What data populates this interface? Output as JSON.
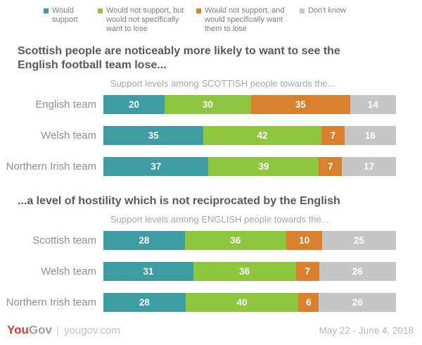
{
  "legend": {
    "items": [
      {
        "label": "Would support",
        "color": "#3E9CA3"
      },
      {
        "label": "Would not support, but would not specifically want to lose",
        "color": "#8EC63F"
      },
      {
        "label": "Would not support, and would specifically want them to lose",
        "color": "#D9802E"
      },
      {
        "label": "Don't know",
        "color": "#C6C6C6"
      }
    ]
  },
  "chart_data": [
    {
      "type": "bar",
      "stacked": true,
      "orientation": "horizontal",
      "title": "Scottish people are noticeably more likely to want to see the English football team lose...",
      "subtitle": "Support levels among SCOTTISH people towards the...",
      "categories": [
        "English team",
        "Welsh team",
        "Northern Irish team"
      ],
      "series": [
        {
          "name": "Would support",
          "values": [
            20,
            35,
            37
          ]
        },
        {
          "name": "Would not support, but would not specifically want to lose",
          "values": [
            30,
            42,
            39
          ]
        },
        {
          "name": "Would not support, and would specifically want them to lose",
          "values": [
            35,
            7,
            7
          ]
        },
        {
          "name": "Don't know",
          "values": [
            14,
            16,
            17
          ]
        }
      ],
      "xlim": [
        0,
        100
      ],
      "grid": false,
      "legend_position": "top"
    },
    {
      "type": "bar",
      "stacked": true,
      "orientation": "horizontal",
      "title": "...a level of hostility which is not reciprocated by the English",
      "subtitle": "Support levels among ENGLISH people towards the...",
      "categories": [
        "Scottish team",
        "Welsh team",
        "Northern Irish team"
      ],
      "series": [
        {
          "name": "Would support",
          "values": [
            28,
            31,
            28
          ]
        },
        {
          "name": "Would not support, but would not specifically want to lose",
          "values": [
            36,
            36,
            40
          ]
        },
        {
          "name": "Would not support, and would specifically want them to lose",
          "values": [
            10,
            7,
            6
          ]
        },
        {
          "name": "Don't know",
          "values": [
            25,
            26,
            26
          ]
        }
      ],
      "xlim": [
        0,
        100
      ],
      "grid": false,
      "legend_position": "top"
    }
  ],
  "footer": {
    "logo_you": "You",
    "logo_gov": "Gov",
    "separator": "|",
    "site": "yougov.com",
    "date": "May 22 - June 4, 2018"
  }
}
